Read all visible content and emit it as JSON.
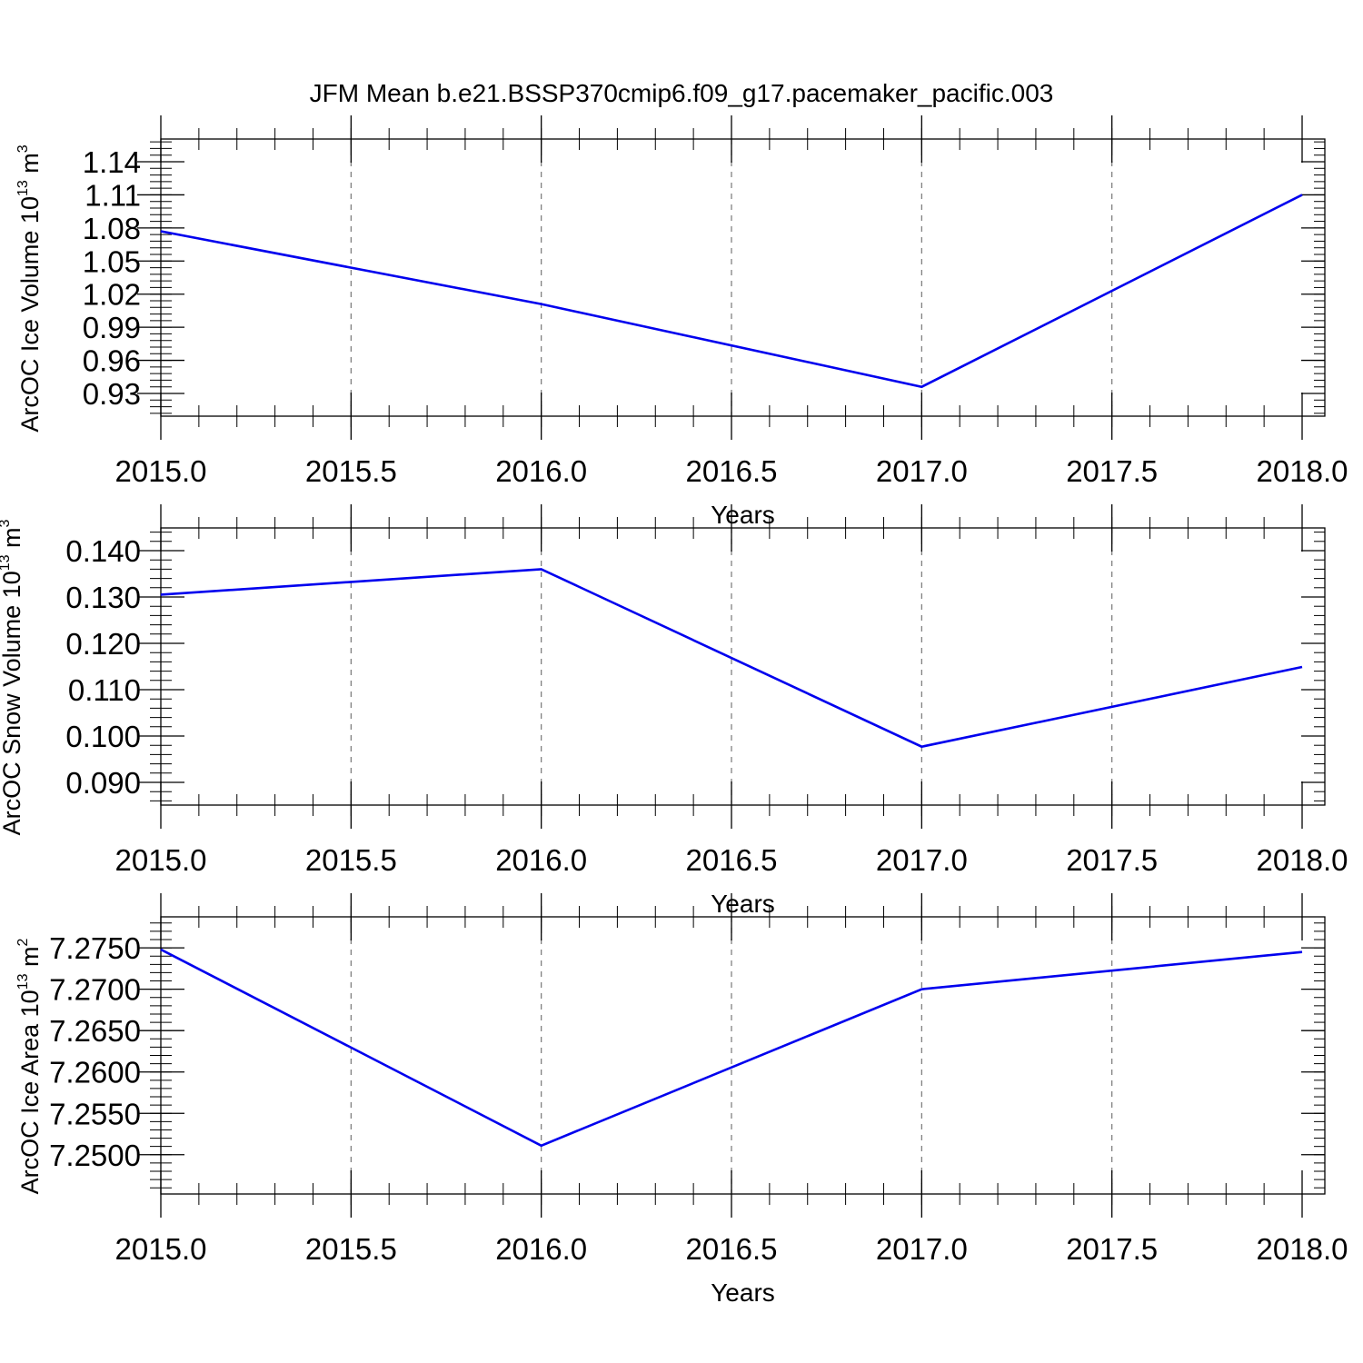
{
  "title": "JFM Mean b.e21.BSSP370cmip6.f09_g17.pacemaker_pacific.003",
  "chart_data": [
    {
      "type": "line",
      "ylabel": "ArcOC Ice Volume 10",
      "ylabel_exp": "13",
      "ylabel_unit": " m",
      "ylabel_unit_exp": "3",
      "xlabel": "Years",
      "x": [
        2015.0,
        2016.0,
        2017.0,
        2018.0
      ],
      "series": [
        {
          "values": [
            1.077,
            1.011,
            0.936,
            1.11
          ],
          "color": "#0000ee"
        }
      ],
      "xlim": [
        2015.0,
        2018.0
      ],
      "ylim": [
        0.93,
        1.14
      ],
      "xticks": [
        "2015.0",
        "2015.5",
        "2016.0",
        "2016.5",
        "2017.0",
        "2017.5",
        "2018.0"
      ],
      "yticks": [
        "0.93",
        "0.96",
        "0.99",
        "1.02",
        "1.05",
        "1.08",
        "1.11",
        "1.14"
      ],
      "grid": "x dashed"
    },
    {
      "type": "line",
      "ylabel": "ArcOC Snow Volume 10",
      "ylabel_exp": "13",
      "ylabel_unit": " m",
      "ylabel_unit_exp": "3",
      "xlabel": "Years",
      "x": [
        2015.0,
        2016.0,
        2017.0,
        2018.0
      ],
      "series": [
        {
          "values": [
            0.1305,
            0.136,
            0.0977,
            0.1149
          ],
          "color": "#0000ee"
        }
      ],
      "xlim": [
        2015.0,
        2018.0
      ],
      "ylim": [
        0.09,
        0.14
      ],
      "xticks": [
        "2015.0",
        "2015.5",
        "2016.0",
        "2016.5",
        "2017.0",
        "2017.5",
        "2018.0"
      ],
      "yticks": [
        "0.090",
        "0.100",
        "0.110",
        "0.120",
        "0.130",
        "0.140"
      ],
      "grid": "x dashed"
    },
    {
      "type": "line",
      "ylabel": "ArcOC Ice Area 10",
      "ylabel_exp": "13",
      "ylabel_unit": " m",
      "ylabel_unit_exp": "2",
      "xlabel": "Years",
      "x": [
        2015.0,
        2016.0,
        2017.0,
        2018.0
      ],
      "series": [
        {
          "values": [
            7.2748,
            7.2511,
            7.27,
            7.2745
          ],
          "color": "#0000ee"
        }
      ],
      "xlim": [
        2015.0,
        2018.0
      ],
      "ylim": [
        7.248,
        7.276
      ],
      "xticks": [
        "2015.0",
        "2015.5",
        "2016.0",
        "2016.5",
        "2017.0",
        "2017.5",
        "2018.0"
      ],
      "yticks": [
        "7.2500",
        "7.2550",
        "7.2600",
        "7.2650",
        "7.2700",
        "7.2750"
      ],
      "grid": "x dashed"
    }
  ]
}
